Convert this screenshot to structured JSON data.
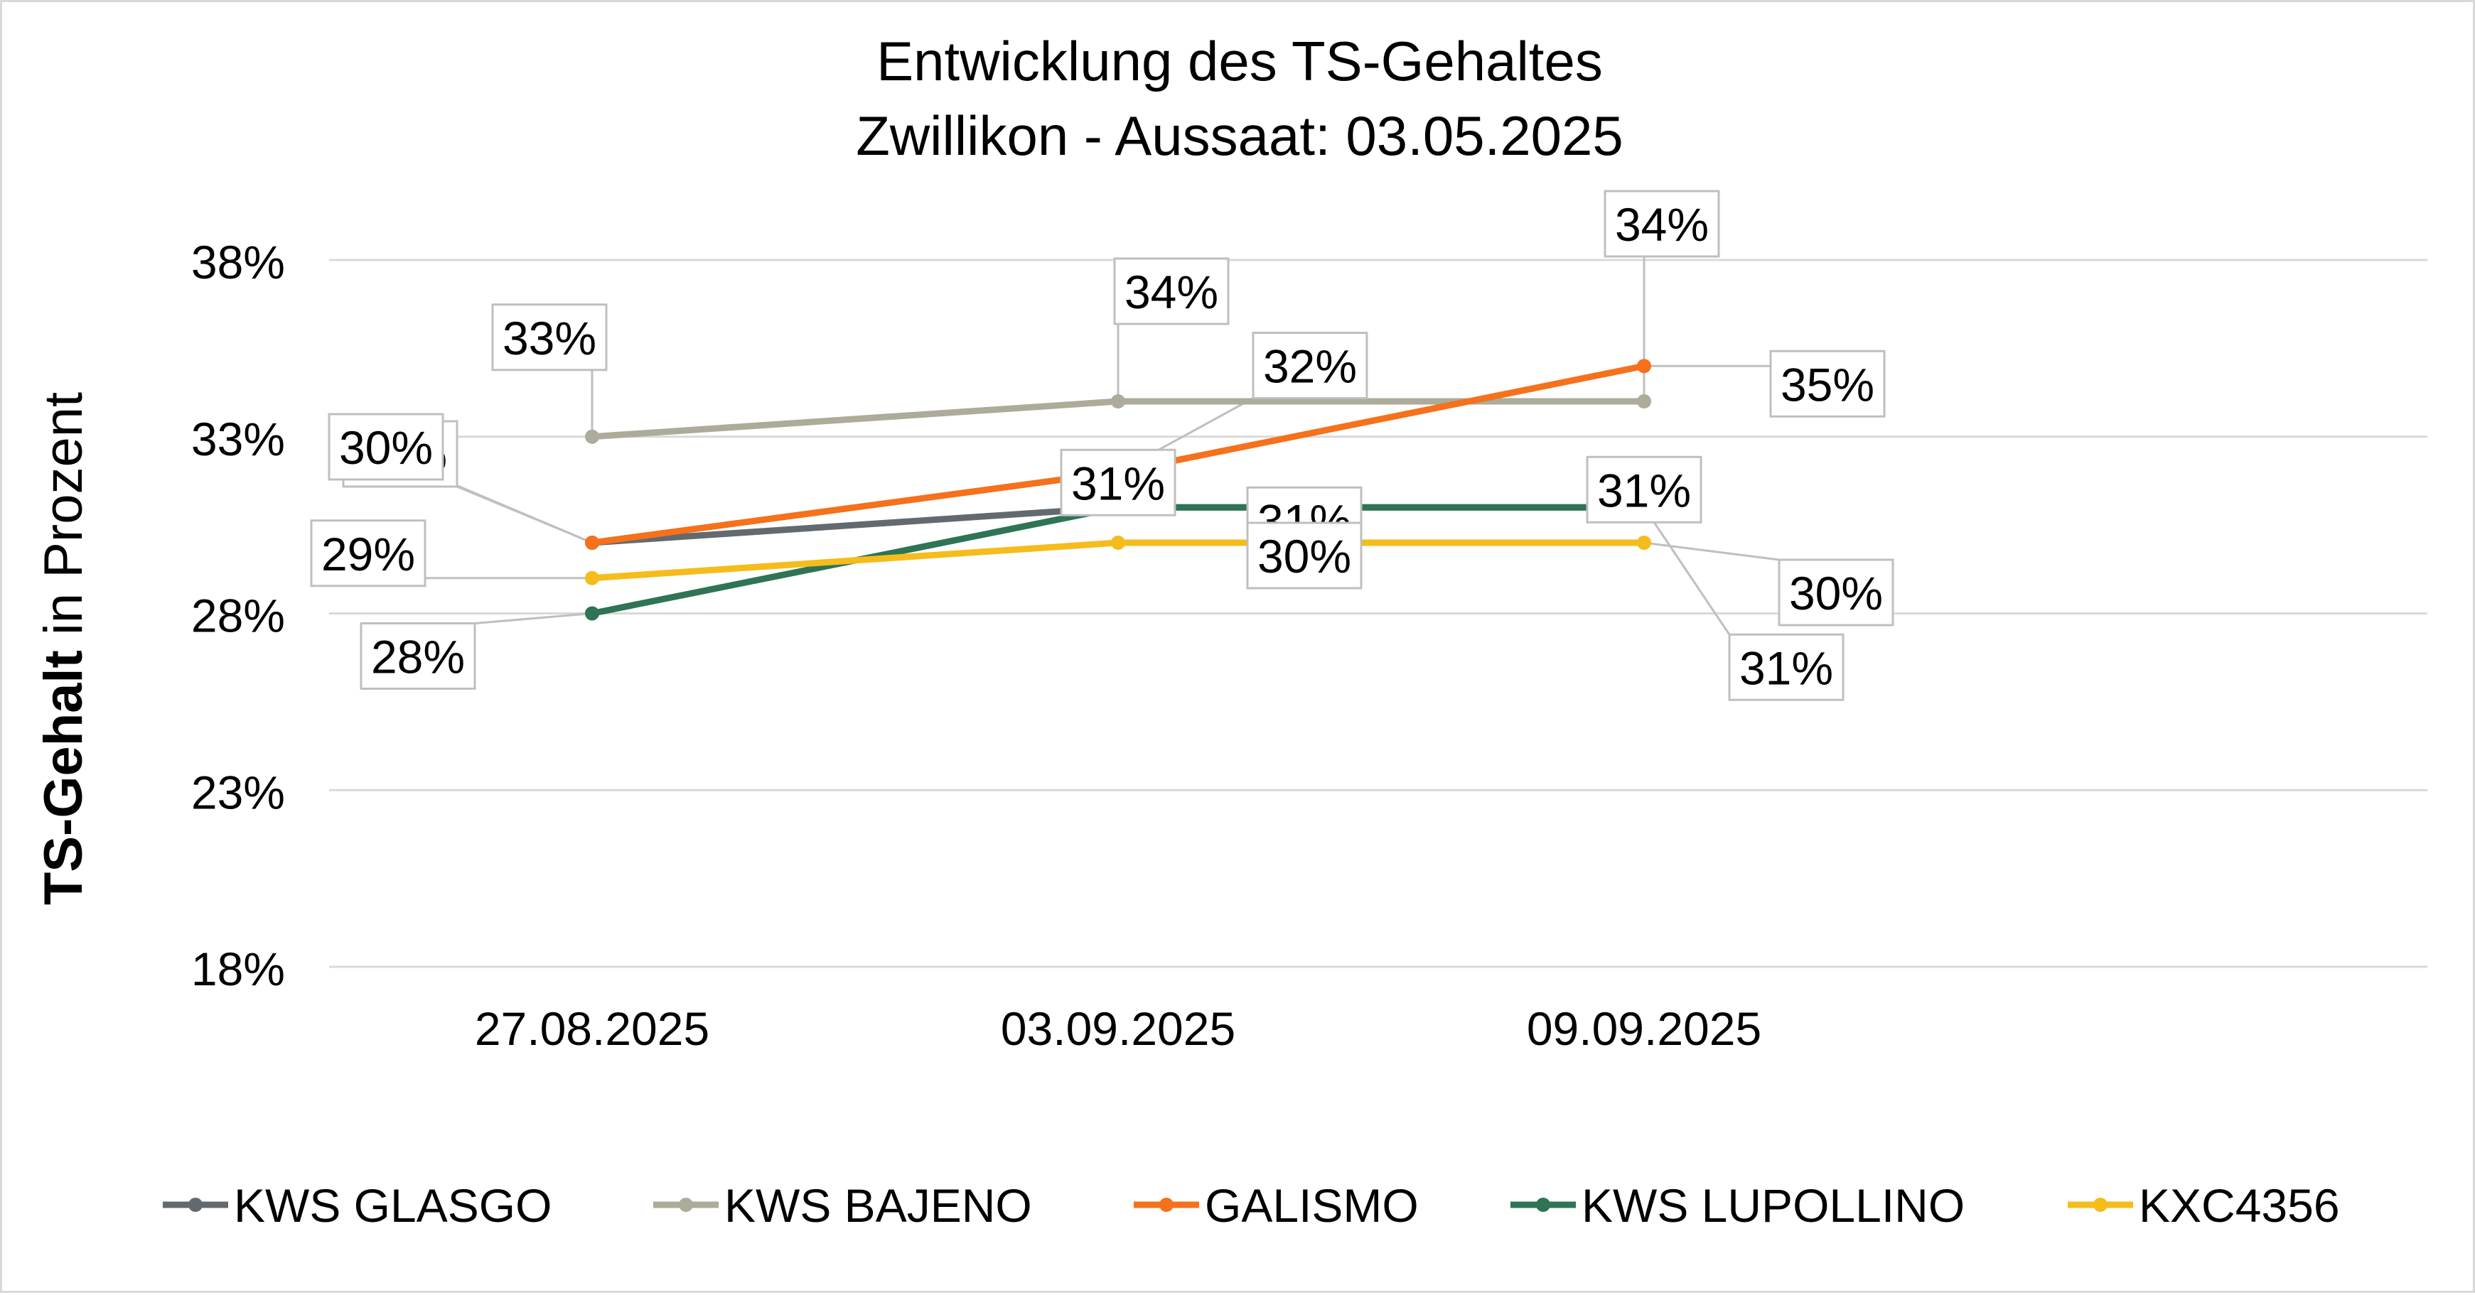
{
  "chart_data": {
    "type": "line",
    "title": [
      "Entwicklung des TS-Gehaltes",
      "Zwillikon - Aussaat: 03.05.2025"
    ],
    "ylabel_bold": "TS-Gehalt",
    "ylabel_rest": " in Prozent",
    "xlabel": "",
    "categories": [
      "27.08.2025",
      "03.09.2025",
      "09.09.2025"
    ],
    "ylim": [
      18,
      38
    ],
    "yticks": [
      "18%",
      "23%",
      "28%",
      "33%",
      "38%"
    ],
    "grid": true,
    "legend_position": "bottom",
    "series": [
      {
        "name": "KWS GLASGO",
        "color": "#636A6F",
        "values": [
          30,
          31,
          31
        ],
        "labels": [
          "30%",
          "31%",
          "31%"
        ]
      },
      {
        "name": "KWS BAJENO",
        "color": "#ADAB99",
        "values": [
          33,
          34,
          34
        ],
        "labels": [
          "33%",
          "34%",
          "34%"
        ]
      },
      {
        "name": "GALISMO",
        "color": "#F5711B",
        "values": [
          30,
          32,
          35
        ],
        "labels": [
          "30%",
          "32%",
          "35%"
        ]
      },
      {
        "name": "KWS LUPOLLINO",
        "color": "#2E7455",
        "values": [
          28,
          31,
          31
        ],
        "labels": [
          "28%",
          "31%",
          "31%"
        ]
      },
      {
        "name": "KXC4356",
        "color": "#F5BC1B",
        "values": [
          29,
          30,
          30
        ],
        "labels": [
          "29%",
          "30%",
          "30%"
        ]
      }
    ]
  }
}
